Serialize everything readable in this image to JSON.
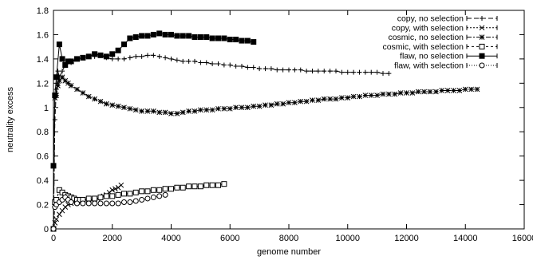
{
  "chart_data": {
    "type": "line",
    "xlabel": "genome number",
    "ylabel": "neutrality excess",
    "xlim": [
      0,
      16000
    ],
    "ylim": [
      0,
      1.8
    ],
    "xticks": [
      "0",
      "2000",
      "4000",
      "6000",
      "8000",
      "10000",
      "12000",
      "14000",
      "16000"
    ],
    "yticks": [
      "0",
      "0.2",
      "0.4",
      "0.6",
      "0.8",
      "1",
      "1.2",
      "1.4",
      "1.6",
      "1.8"
    ],
    "grid": false,
    "legend_position": "top-right",
    "series": [
      {
        "name": "copy, no selection",
        "marker": "plus",
        "dash": "6,3",
        "x": [
          0,
          50,
          100,
          150,
          200,
          300,
          400,
          600,
          800,
          1000,
          1200,
          1400,
          1600,
          1800,
          2000,
          2200,
          2400,
          2600,
          2800,
          3000,
          3200,
          3400,
          3600,
          3800,
          4000,
          4200,
          4400,
          4600,
          4800,
          5000,
          5200,
          5400,
          5600,
          5800,
          6000,
          6200,
          6400,
          6600,
          6800,
          7000,
          7200,
          7400,
          7600,
          7800,
          8000,
          8200,
          8400,
          8600,
          8800,
          9000,
          9200,
          9400,
          9600,
          9800,
          10000,
          10200,
          10400,
          10600,
          10800,
          11000,
          11200,
          11400
        ],
        "y": [
          0.0,
          0.9,
          1.15,
          1.3,
          1.25,
          1.3,
          1.35,
          1.37,
          1.4,
          1.41,
          1.42,
          1.42,
          1.43,
          1.41,
          1.4,
          1.4,
          1.4,
          1.41,
          1.42,
          1.42,
          1.43,
          1.43,
          1.42,
          1.41,
          1.4,
          1.39,
          1.38,
          1.38,
          1.38,
          1.37,
          1.37,
          1.36,
          1.36,
          1.35,
          1.35,
          1.34,
          1.34,
          1.33,
          1.33,
          1.32,
          1.32,
          1.32,
          1.31,
          1.31,
          1.31,
          1.31,
          1.31,
          1.3,
          1.3,
          1.3,
          1.3,
          1.3,
          1.3,
          1.29,
          1.29,
          1.29,
          1.29,
          1.29,
          1.29,
          1.29,
          1.28,
          1.28
        ]
      },
      {
        "name": "copy, with selection",
        "marker": "x",
        "dash": "2,2",
        "x": [
          0,
          50,
          100,
          200,
          300,
          400,
          500,
          600,
          700,
          800,
          900,
          1000,
          1100,
          1200,
          1300,
          1400,
          1500,
          1600,
          1700,
          1800,
          1900,
          2000,
          2100,
          2200,
          2300
        ],
        "y": [
          0.0,
          0.05,
          0.08,
          0.12,
          0.15,
          0.18,
          0.2,
          0.21,
          0.22,
          0.22,
          0.23,
          0.23,
          0.24,
          0.24,
          0.24,
          0.25,
          0.25,
          0.26,
          0.27,
          0.28,
          0.3,
          0.32,
          0.33,
          0.34,
          0.36
        ]
      },
      {
        "name": "cosmic, no selection",
        "marker": "star",
        "dash": "6,2,2,2",
        "x": [
          0,
          50,
          100,
          150,
          200,
          300,
          400,
          500,
          600,
          800,
          1000,
          1200,
          1400,
          1600,
          1800,
          2000,
          2200,
          2400,
          2600,
          2800,
          3000,
          3200,
          3400,
          3600,
          3800,
          4000,
          4200,
          4400,
          4600,
          4800,
          5000,
          5200,
          5400,
          5600,
          5800,
          6000,
          6200,
          6400,
          6600,
          6800,
          7000,
          7200,
          7400,
          7600,
          7800,
          8000,
          8200,
          8400,
          8600,
          8800,
          9000,
          9200,
          9400,
          9600,
          9800,
          10000,
          10200,
          10400,
          10600,
          10800,
          11000,
          11200,
          11400,
          11600,
          11800,
          12000,
          12200,
          12400,
          12600,
          12800,
          13000,
          13200,
          13400,
          13600,
          13800,
          14000,
          14200,
          14400
        ],
        "y": [
          0.0,
          1.08,
          1.1,
          1.18,
          1.22,
          1.25,
          1.22,
          1.2,
          1.18,
          1.15,
          1.12,
          1.09,
          1.07,
          1.05,
          1.03,
          1.02,
          1.01,
          1.0,
          0.99,
          0.98,
          0.97,
          0.97,
          0.97,
          0.96,
          0.96,
          0.95,
          0.95,
          0.96,
          0.97,
          0.97,
          0.98,
          0.98,
          0.98,
          0.99,
          0.99,
          0.99,
          1.0,
          1.0,
          1.0,
          1.01,
          1.01,
          1.02,
          1.02,
          1.03,
          1.03,
          1.04,
          1.04,
          1.05,
          1.05,
          1.06,
          1.06,
          1.07,
          1.07,
          1.07,
          1.08,
          1.08,
          1.09,
          1.09,
          1.1,
          1.1,
          1.1,
          1.11,
          1.11,
          1.11,
          1.12,
          1.12,
          1.12,
          1.13,
          1.13,
          1.13,
          1.13,
          1.14,
          1.14,
          1.14,
          1.14,
          1.15,
          1.15,
          1.15
        ]
      },
      {
        "name": "cosmic, with selection",
        "marker": "square-open",
        "dash": "3,3",
        "x": [
          0,
          50,
          100,
          200,
          300,
          400,
          500,
          600,
          700,
          800,
          900,
          1000,
          1200,
          1400,
          1600,
          1800,
          2000,
          2200,
          2400,
          2600,
          2800,
          3000,
          3200,
          3400,
          3600,
          3800,
          4000,
          4200,
          4400,
          4600,
          4800,
          5000,
          5200,
          5400,
          5600,
          5800
        ],
        "y": [
          0.0,
          0.22,
          0.24,
          0.32,
          0.3,
          0.28,
          0.27,
          0.26,
          0.25,
          0.24,
          0.24,
          0.24,
          0.25,
          0.25,
          0.26,
          0.27,
          0.27,
          0.28,
          0.29,
          0.29,
          0.3,
          0.31,
          0.31,
          0.32,
          0.32,
          0.33,
          0.33,
          0.34,
          0.34,
          0.35,
          0.35,
          0.35,
          0.36,
          0.36,
          0.36,
          0.37
        ]
      },
      {
        "name": "flaw, no selection",
        "marker": "square-filled",
        "dash": "",
        "x": [
          0,
          50,
          100,
          200,
          300,
          400,
          500,
          600,
          800,
          1000,
          1200,
          1400,
          1600,
          1800,
          2000,
          2200,
          2400,
          2600,
          2800,
          3000,
          3200,
          3400,
          3600,
          3800,
          4000,
          4200,
          4400,
          4600,
          4800,
          5000,
          5200,
          5400,
          5600,
          5800,
          6000,
          6200,
          6400,
          6600,
          6800
        ],
        "y": [
          0.52,
          1.1,
          1.25,
          1.52,
          1.4,
          1.35,
          1.38,
          1.38,
          1.4,
          1.41,
          1.42,
          1.44,
          1.43,
          1.42,
          1.44,
          1.47,
          1.52,
          1.57,
          1.58,
          1.59,
          1.59,
          1.6,
          1.61,
          1.6,
          1.6,
          1.59,
          1.59,
          1.59,
          1.58,
          1.58,
          1.58,
          1.57,
          1.57,
          1.57,
          1.56,
          1.56,
          1.55,
          1.55,
          1.54
        ]
      },
      {
        "name": "flaw, with selection",
        "marker": "circle-open",
        "dash": "1,2",
        "x": [
          0,
          50,
          100,
          200,
          300,
          400,
          500,
          600,
          800,
          1000,
          1200,
          1400,
          1600,
          1800,
          2000,
          2200,
          2400,
          2600,
          2800,
          3000,
          3200,
          3400,
          3600,
          3800
        ],
        "y": [
          0.0,
          0.18,
          0.2,
          0.22,
          0.24,
          0.26,
          0.24,
          0.22,
          0.21,
          0.21,
          0.21,
          0.21,
          0.21,
          0.21,
          0.21,
          0.21,
          0.22,
          0.22,
          0.23,
          0.24,
          0.25,
          0.26,
          0.27,
          0.28
        ]
      }
    ]
  }
}
